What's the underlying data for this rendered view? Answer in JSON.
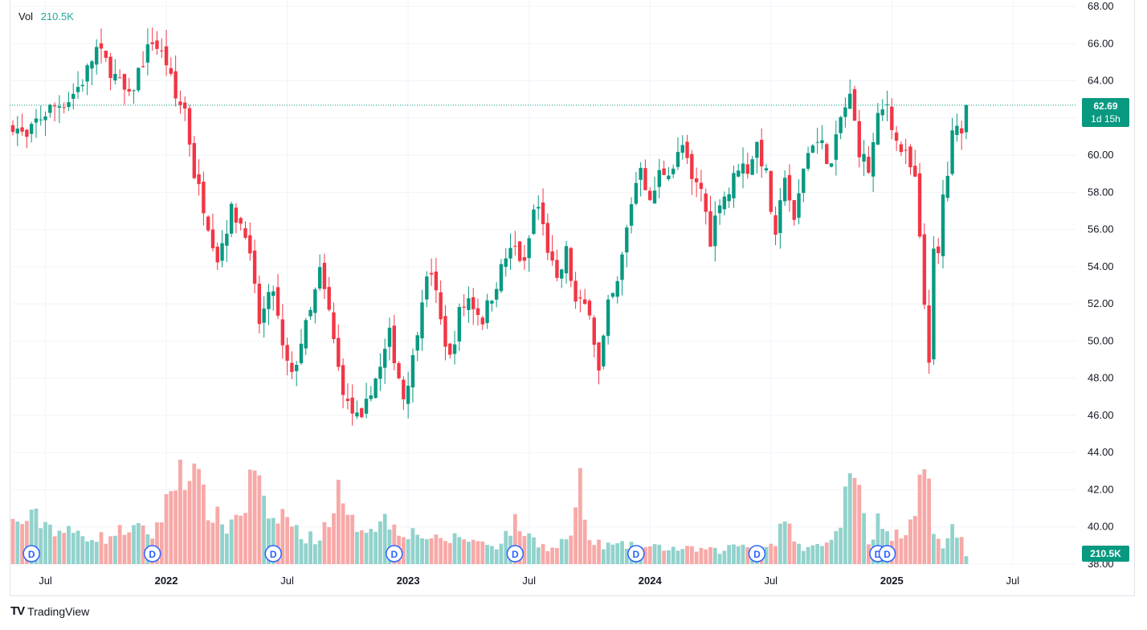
{
  "legend": {
    "label": "Vol",
    "value": "210.5K"
  },
  "last_price": {
    "price": "62.69",
    "countdown": "1d 15h"
  },
  "volume_tag": "210.5K",
  "brand": {
    "logo": "TV",
    "name": "TradingView"
  },
  "colors": {
    "up": "#089981",
    "down": "#f23645",
    "vol_up": "#92d2cc",
    "vol_down": "#f7a9a7",
    "grid": "#f0f3fa",
    "dividend": "#2962ff"
  },
  "dividend_label": "D",
  "chart_data": {
    "type": "candlestick",
    "title": "",
    "interval": "1W",
    "ylim": [
      38,
      68
    ],
    "y_ticks": [
      "68.00",
      "66.00",
      "64.00",
      "62.00",
      "60.00",
      "58.00",
      "56.00",
      "54.00",
      "52.00",
      "50.00",
      "48.00",
      "46.00",
      "44.00",
      "42.00",
      "40.00",
      "38.00"
    ],
    "x_ticks": [
      {
        "label": "Jul",
        "bold": false,
        "week": 7
      },
      {
        "label": "2022",
        "bold": true,
        "week": 33
      },
      {
        "label": "Jul",
        "bold": false,
        "week": 59
      },
      {
        "label": "2023",
        "bold": true,
        "week": 85
      },
      {
        "label": "Jul",
        "bold": false,
        "week": 111
      },
      {
        "label": "2024",
        "bold": true,
        "week": 137
      },
      {
        "label": "Jul",
        "bold": false,
        "week": 163
      },
      {
        "label": "2025",
        "bold": true,
        "week": 189
      },
      {
        "label": "Jul",
        "bold": false,
        "week": 215
      }
    ],
    "close_keypoints": [
      [
        0,
        61.7
      ],
      [
        3,
        60.8
      ],
      [
        5,
        61.8
      ],
      [
        8,
        62.5
      ],
      [
        12,
        63.0
      ],
      [
        15,
        64.0
      ],
      [
        18,
        65.7
      ],
      [
        20,
        65.0
      ],
      [
        22,
        64.2
      ],
      [
        25,
        63.0
      ],
      [
        27,
        64.5
      ],
      [
        30,
        66.2
      ],
      [
        33,
        65.0
      ],
      [
        35,
        63.0
      ],
      [
        37,
        62.5
      ],
      [
        39,
        59.0
      ],
      [
        41,
        57.3
      ],
      [
        44,
        54.5
      ],
      [
        47,
        57.0
      ],
      [
        50,
        56.0
      ],
      [
        53,
        51.0
      ],
      [
        56,
        52.8
      ],
      [
        58,
        49.5
      ],
      [
        60,
        48.0
      ],
      [
        62,
        50.0
      ],
      [
        64,
        51.5
      ],
      [
        66,
        53.7
      ],
      [
        68,
        51.5
      ],
      [
        70,
        48.5
      ],
      [
        72,
        46.5
      ],
      [
        75,
        45.5
      ],
      [
        77,
        47.5
      ],
      [
        79,
        48.5
      ],
      [
        81,
        50.3
      ],
      [
        84,
        47.0
      ],
      [
        86,
        49.0
      ],
      [
        88,
        52.5
      ],
      [
        90,
        53.8
      ],
      [
        92,
        51.0
      ],
      [
        94,
        49.0
      ],
      [
        96,
        51.5
      ],
      [
        98,
        52.3
      ],
      [
        101,
        51.2
      ],
      [
        103,
        52.5
      ],
      [
        106,
        54.5
      ],
      [
        108,
        55.0
      ],
      [
        110,
        54.0
      ],
      [
        112,
        57.0
      ],
      [
        113,
        57.2
      ],
      [
        115,
        55.0
      ],
      [
        117,
        53.0
      ],
      [
        119,
        54.8
      ],
      [
        121,
        52.0
      ],
      [
        124,
        51.8
      ],
      [
        126,
        48.3
      ],
      [
        128,
        51.8
      ],
      [
        130,
        53.0
      ],
      [
        133,
        57.5
      ],
      [
        135,
        59.6
      ],
      [
        137,
        57.3
      ],
      [
        139,
        59.0
      ],
      [
        142,
        59.4
      ],
      [
        144,
        60.5
      ],
      [
        146,
        58.5
      ],
      [
        148,
        58.2
      ],
      [
        150,
        55.5
      ],
      [
        152,
        57.7
      ],
      [
        154,
        58.0
      ],
      [
        156,
        59.5
      ],
      [
        158,
        59.3
      ],
      [
        160,
        60.6
      ],
      [
        162,
        58.9
      ],
      [
        164,
        55.3
      ],
      [
        166,
        59.1
      ],
      [
        168,
        56.2
      ],
      [
        170,
        59.4
      ],
      [
        172,
        60.8
      ],
      [
        174,
        60.5
      ],
      [
        176,
        59.4
      ],
      [
        178,
        62.0
      ],
      [
        180,
        63.1
      ],
      [
        182,
        60.3
      ],
      [
        184,
        59.2
      ],
      [
        186,
        61.9
      ],
      [
        188,
        62.8
      ],
      [
        190,
        60.7
      ],
      [
        192,
        59.9
      ],
      [
        194,
        58.6
      ],
      [
        196,
        52.0
      ],
      [
        197,
        49.2
      ],
      [
        198,
        54.6
      ],
      [
        199,
        54.5
      ],
      [
        200,
        57.8
      ],
      [
        201,
        59.0
      ],
      [
        202,
        61.0
      ],
      [
        204,
        61.6
      ],
      [
        205,
        62.69
      ]
    ],
    "volume_keypoints": [
      [
        0,
        2.2
      ],
      [
        5,
        2.5
      ],
      [
        10,
        1.8
      ],
      [
        15,
        1.6
      ],
      [
        20,
        1.4
      ],
      [
        25,
        2.0
      ],
      [
        30,
        1.6
      ],
      [
        33,
        3.2
      ],
      [
        36,
        5.5
      ],
      [
        39,
        4.8
      ],
      [
        42,
        3.0
      ],
      [
        46,
        2.0
      ],
      [
        50,
        3.2
      ],
      [
        52,
        5.5
      ],
      [
        55,
        2.0
      ],
      [
        58,
        2.8
      ],
      [
        62,
        1.5
      ],
      [
        66,
        1.4
      ],
      [
        70,
        3.8
      ],
      [
        72,
        2.3
      ],
      [
        76,
        2.0
      ],
      [
        80,
        2.4
      ],
      [
        84,
        1.8
      ],
      [
        88,
        1.6
      ],
      [
        92,
        1.2
      ],
      [
        96,
        1.5
      ],
      [
        100,
        1.2
      ],
      [
        104,
        1.0
      ],
      [
        108,
        2.2
      ],
      [
        112,
        1.3
      ],
      [
        116,
        0.8
      ],
      [
        120,
        1.6
      ],
      [
        122,
        4.2
      ],
      [
        124,
        1.2
      ],
      [
        128,
        1.0
      ],
      [
        132,
        1.0
      ],
      [
        136,
        0.9
      ],
      [
        140,
        0.9
      ],
      [
        144,
        0.8
      ],
      [
        148,
        0.8
      ],
      [
        152,
        0.7
      ],
      [
        156,
        1.1
      ],
      [
        160,
        0.8
      ],
      [
        164,
        1.2
      ],
      [
        166,
        2.8
      ],
      [
        168,
        1.0
      ],
      [
        172,
        0.9
      ],
      [
        176,
        1.2
      ],
      [
        178,
        2.0
      ],
      [
        180,
        6.4
      ],
      [
        182,
        4.5
      ],
      [
        184,
        1.2
      ],
      [
        186,
        2.3
      ],
      [
        188,
        1.5
      ],
      [
        190,
        1.6
      ],
      [
        192,
        2.0
      ],
      [
        194,
        3.2
      ],
      [
        196,
        6.5
      ],
      [
        198,
        1.5
      ],
      [
        200,
        1.0
      ],
      [
        202,
        2.0
      ],
      [
        204,
        1.4
      ],
      [
        205,
        0.5
      ]
    ],
    "volume_ylim": [
      0,
      7.5
    ],
    "dividend_weeks": [
      4,
      30,
      56,
      82,
      108,
      134,
      160,
      186,
      188
    ],
    "last_close": 62.69
  }
}
